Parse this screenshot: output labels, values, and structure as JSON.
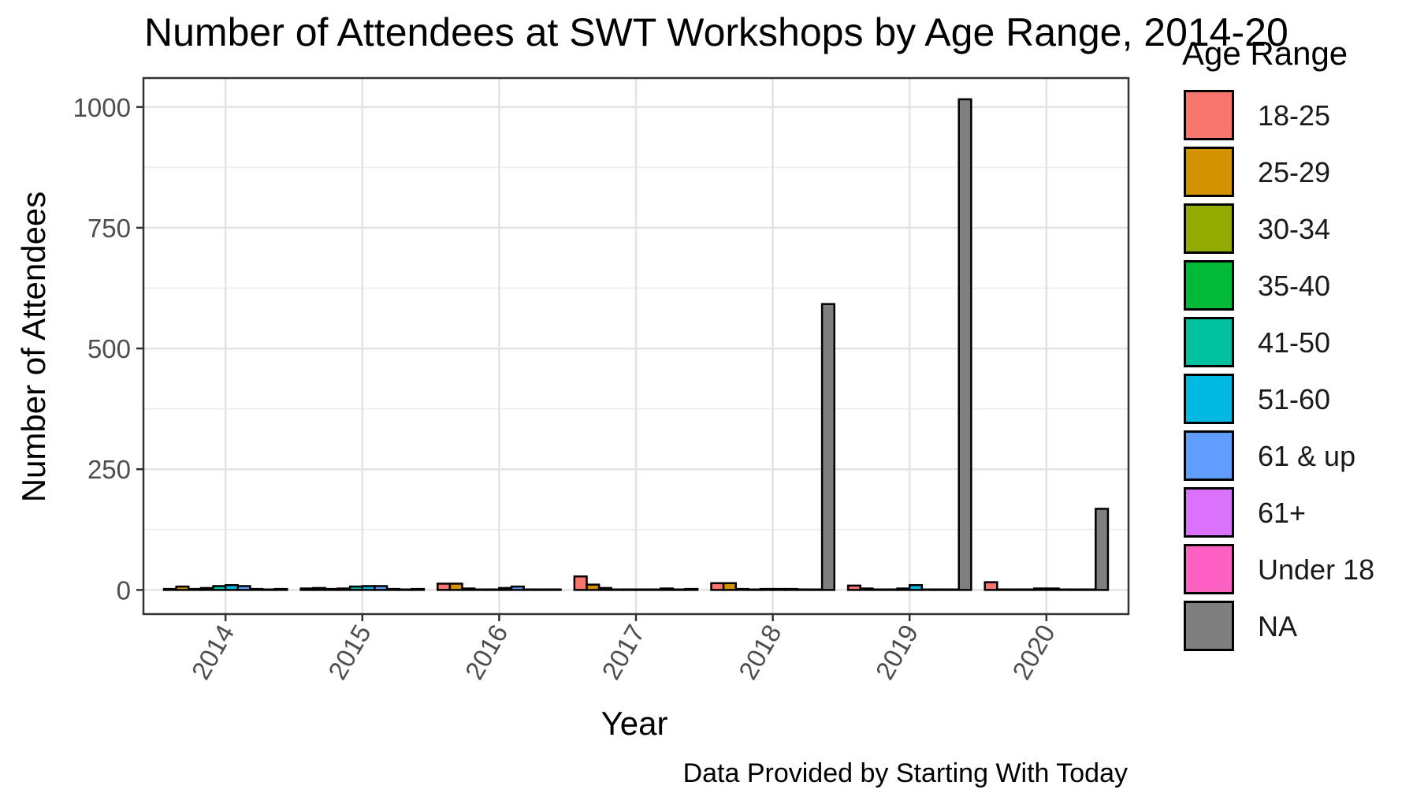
{
  "chart_data": {
    "type": "bar",
    "title": "Number of Attendees at SWT Workshops by Age Range, 2014-20",
    "xlabel": "Year",
    "ylabel": "Number of Attendees",
    "caption": "Data Provided by Starting With Today",
    "legend_title": "Age Range",
    "legend_position": "right",
    "grid": true,
    "ylim": [
      -50,
      1060
    ],
    "yticks": [
      0,
      250,
      500,
      750,
      1000
    ],
    "categories": [
      "2014",
      "2015",
      "2016",
      "2017",
      "2018",
      "2019",
      "2020"
    ],
    "series": [
      {
        "name": "18-25",
        "color": "#F8766D",
        "values": [
          2,
          3,
          13,
          28,
          14,
          9,
          16
        ]
      },
      {
        "name": "25-29",
        "color": "#D39200",
        "values": [
          7,
          4,
          13,
          11,
          14,
          3,
          1
        ]
      },
      {
        "name": "30-34",
        "color": "#93AA00",
        "values": [
          2,
          2,
          3,
          4,
          2,
          1,
          1
        ]
      },
      {
        "name": "35-40",
        "color": "#00BA38",
        "values": [
          4,
          3,
          1,
          1,
          1,
          1,
          1
        ]
      },
      {
        "name": "41-50",
        "color": "#00C19F",
        "values": [
          8,
          7,
          1,
          1,
          2,
          3,
          3
        ]
      },
      {
        "name": "51-60",
        "color": "#00B9E3",
        "values": [
          10,
          8,
          4,
          1,
          2,
          10,
          3
        ]
      },
      {
        "name": "61 & up",
        "color": "#619CFF",
        "values": [
          8,
          8,
          7,
          1,
          2,
          1,
          1
        ]
      },
      {
        "name": "61+",
        "color": "#DB72FB",
        "values": [
          2,
          2,
          1,
          3,
          1,
          1,
          1
        ]
      },
      {
        "name": "Under 18",
        "color": "#FF61C3",
        "values": [
          1,
          1,
          1,
          1,
          1,
          1,
          1
        ]
      },
      {
        "name": "NA",
        "color": "#7F7F7F",
        "values": [
          2,
          2,
          1,
          2,
          592,
          1016,
          168
        ]
      }
    ]
  }
}
